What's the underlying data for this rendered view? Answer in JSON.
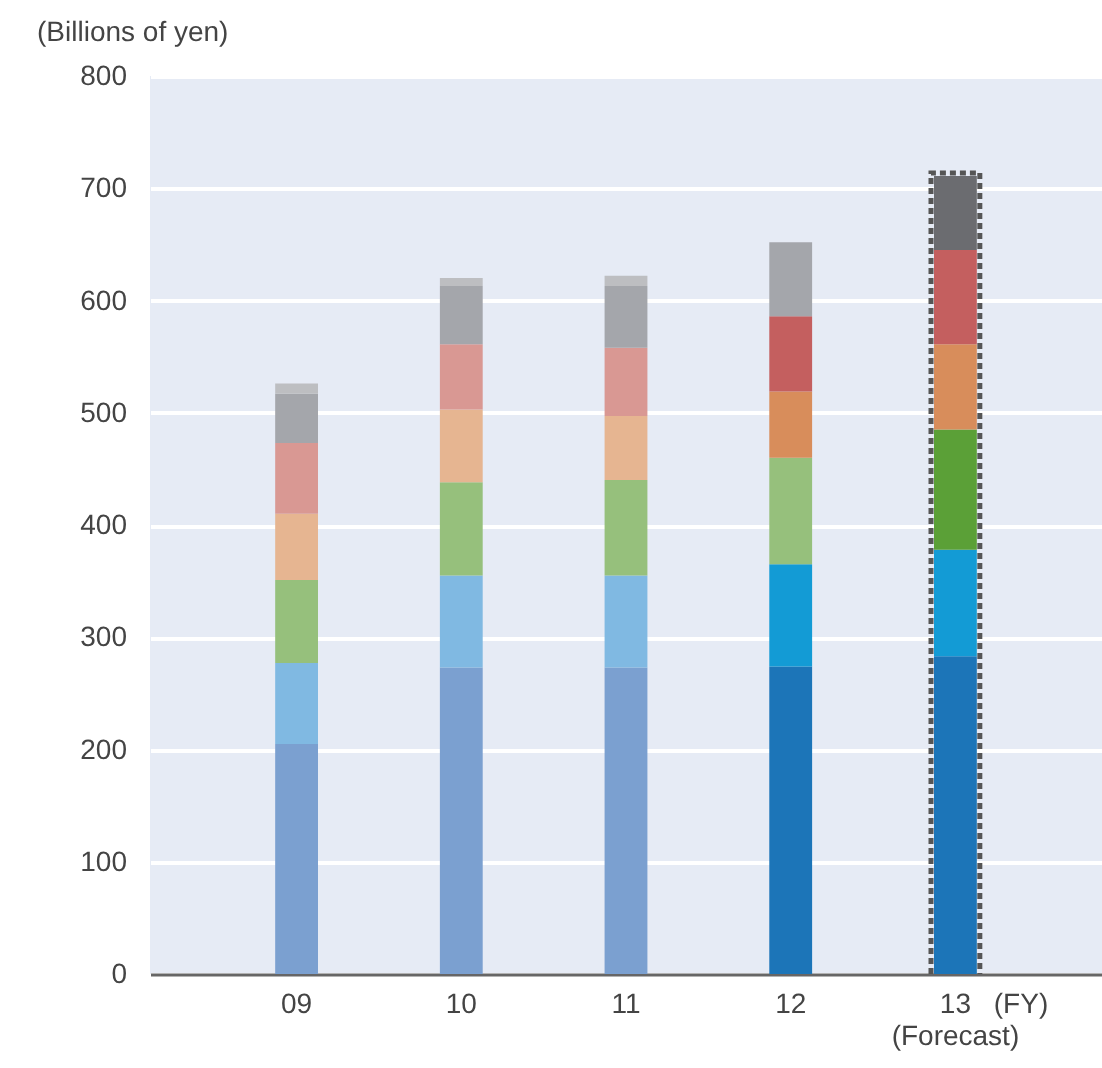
{
  "chart_data": {
    "type": "bar",
    "stacked": true,
    "ylabel": "(Billions of yen)",
    "xlabel": "(FY)",
    "categories": [
      "09",
      "10",
      "11",
      "12",
      "13\n(Forecast)"
    ],
    "ylim": [
      0,
      800
    ],
    "yticks": [
      0,
      100,
      200,
      300,
      400,
      500,
      600,
      700,
      800
    ],
    "grid": "y",
    "series": [
      {
        "colors": [
          "#7ba0d0",
          "#7ba0d0",
          "#7ba0d0",
          "#1c75b8",
          "#1c75b8"
        ],
        "values": [
          205,
          273,
          273,
          274,
          283
        ]
      },
      {
        "colors": [
          "#80b9e2",
          "#80b9e2",
          "#80b9e2",
          "#139bd5",
          "#139bd5"
        ],
        "values": [
          72,
          82,
          82,
          91,
          95
        ]
      },
      {
        "colors": [
          "#96c07c",
          "#96c07c",
          "#96c07c",
          "#96c07c",
          "#5ba037"
        ],
        "values": [
          74,
          83,
          85,
          95,
          107
        ]
      },
      {
        "colors": [
          "#e6b591",
          "#e6b591",
          "#e6b591",
          "#d88d5b",
          "#d88d5b"
        ],
        "values": [
          59,
          65,
          57,
          59,
          76
        ]
      },
      {
        "colors": [
          "#d99893",
          "#d99893",
          "#d99893",
          "#c45f5f",
          "#c45f5f"
        ],
        "values": [
          63,
          58,
          61,
          67,
          84
        ]
      },
      {
        "colors": [
          "#a4a6ab",
          "#a4a6ab",
          "#a4a6ab",
          "#a4a6ab",
          "#6b6c70"
        ],
        "values": [
          44,
          52,
          55,
          66,
          66
        ]
      },
      {
        "colors": [
          "#bdbec1",
          "#bdbec1",
          "#bdbec1",
          null,
          null
        ],
        "values": [
          9,
          7,
          9,
          null,
          null
        ]
      }
    ]
  }
}
